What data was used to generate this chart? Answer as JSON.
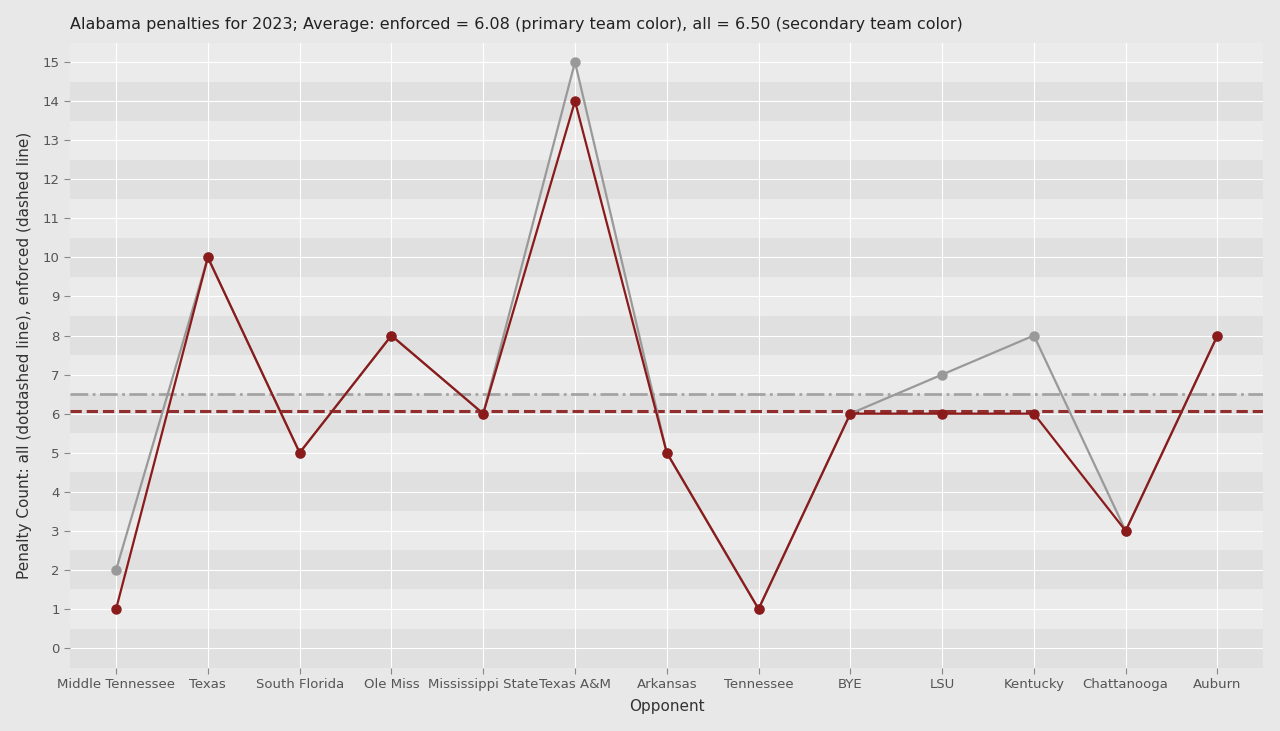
{
  "title": "Alabama penalties for 2023; Average: enforced = 6.08 (primary team color), all = 6.50 (secondary team color)",
  "xlabel": "Opponent",
  "ylabel": "Penalty Count: all (dotdashed line), enforced (dashed line)",
  "opponents": [
    "Middle Tennessee",
    "Texas",
    "South Florida",
    "Ole Miss",
    "Mississippi State",
    "Texas A&M",
    "Arkansas",
    "Tennessee",
    "BYE",
    "LSU",
    "Kentucky",
    "Chattanooga",
    "Auburn"
  ],
  "enforced": [
    1,
    10,
    5,
    8,
    6,
    14,
    5,
    1,
    6,
    6,
    6,
    3,
    8
  ],
  "all": [
    2,
    10,
    5,
    8,
    6,
    15,
    5,
    1,
    6,
    7,
    8,
    3,
    8
  ],
  "avg_enforced": 6.08,
  "avg_all": 6.5,
  "primary_color": "#8B1A1A",
  "secondary_color": "#999999",
  "bg_color": "#E8E8E8",
  "panel_bg": "#E8E8E8",
  "band_light": "#EBEBEB",
  "band_dark": "#E0E0E0",
  "grid_color": "#FFFFFF",
  "ylim_min": -0.5,
  "ylim_max": 15.5,
  "yticks": [
    0,
    1,
    2,
    3,
    4,
    5,
    6,
    7,
    8,
    9,
    10,
    11,
    12,
    13,
    14,
    15
  ],
  "title_fontsize": 11.5,
  "axis_label_fontsize": 11,
  "tick_fontsize": 9.5,
  "line_width": 1.6,
  "marker_size": 6.5
}
